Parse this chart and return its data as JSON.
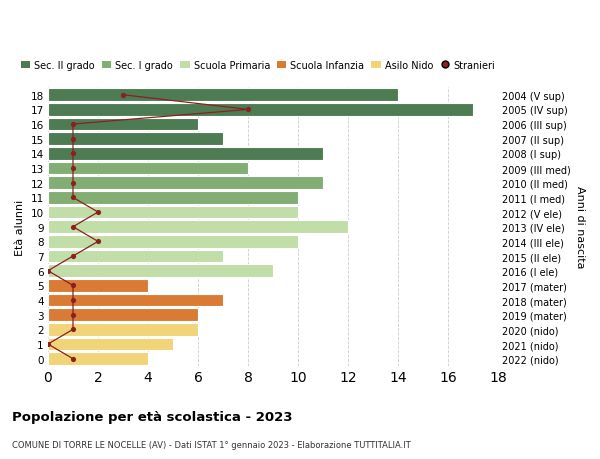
{
  "ages": [
    18,
    17,
    16,
    15,
    14,
    13,
    12,
    11,
    10,
    9,
    8,
    7,
    6,
    5,
    4,
    3,
    2,
    1,
    0
  ],
  "right_labels": [
    "2004 (V sup)",
    "2005 (IV sup)",
    "2006 (III sup)",
    "2007 (II sup)",
    "2008 (I sup)",
    "2009 (III med)",
    "2010 (II med)",
    "2011 (I med)",
    "2012 (V ele)",
    "2013 (IV ele)",
    "2014 (III ele)",
    "2015 (II ele)",
    "2016 (I ele)",
    "2017 (mater)",
    "2018 (mater)",
    "2019 (mater)",
    "2020 (nido)",
    "2021 (nido)",
    "2022 (nido)"
  ],
  "bar_values": [
    14,
    17,
    6,
    7,
    11,
    8,
    11,
    10,
    10,
    12,
    10,
    7,
    9,
    4,
    7,
    6,
    6,
    5,
    4
  ],
  "bar_colors": [
    "#4d7c52",
    "#4d7c52",
    "#4d7c52",
    "#4d7c52",
    "#4d7c52",
    "#82ae74",
    "#82ae74",
    "#82ae74",
    "#c2dea8",
    "#c2dea8",
    "#c2dea8",
    "#c2dea8",
    "#c2dea8",
    "#d97b35",
    "#d97b35",
    "#d97b35",
    "#f2d478",
    "#f2d478",
    "#f2d478"
  ],
  "stranieri_ages": [
    18,
    17,
    16,
    15,
    14,
    13,
    12,
    11,
    10,
    9,
    8,
    7,
    6,
    5,
    4,
    3,
    2,
    1,
    0
  ],
  "stranieri_values": [
    3,
    8,
    1,
    1,
    1,
    1,
    1,
    1,
    2,
    1,
    2,
    1,
    0,
    1,
    1,
    1,
    1,
    0,
    1
  ],
  "legend_labels": [
    "Sec. II grado",
    "Sec. I grado",
    "Scuola Primaria",
    "Scuola Infanzia",
    "Asilo Nido",
    "Stranieri"
  ],
  "legend_colors": [
    "#4d7c52",
    "#82ae74",
    "#c2dea8",
    "#d97b35",
    "#f2d478",
    "#8b2020"
  ],
  "ylabel_left": "Età alunni",
  "ylabel_right": "Anni di nascita",
  "title": "Popolazione per età scolastica - 2023",
  "subtitle": "COMUNE DI TORRE LE NOCELLE (AV) - Dati ISTAT 1° gennaio 2023 - Elaborazione TUTTITALIA.IT",
  "xlim": [
    0,
    18
  ],
  "ylim": [
    -0.5,
    18.5
  ],
  "background_color": "#ffffff",
  "bar_edge_color": "#ffffff",
  "stranieri_color": "#8b2020",
  "stranieri_line_color": "#8b2020",
  "grid_color": "#cccccc"
}
